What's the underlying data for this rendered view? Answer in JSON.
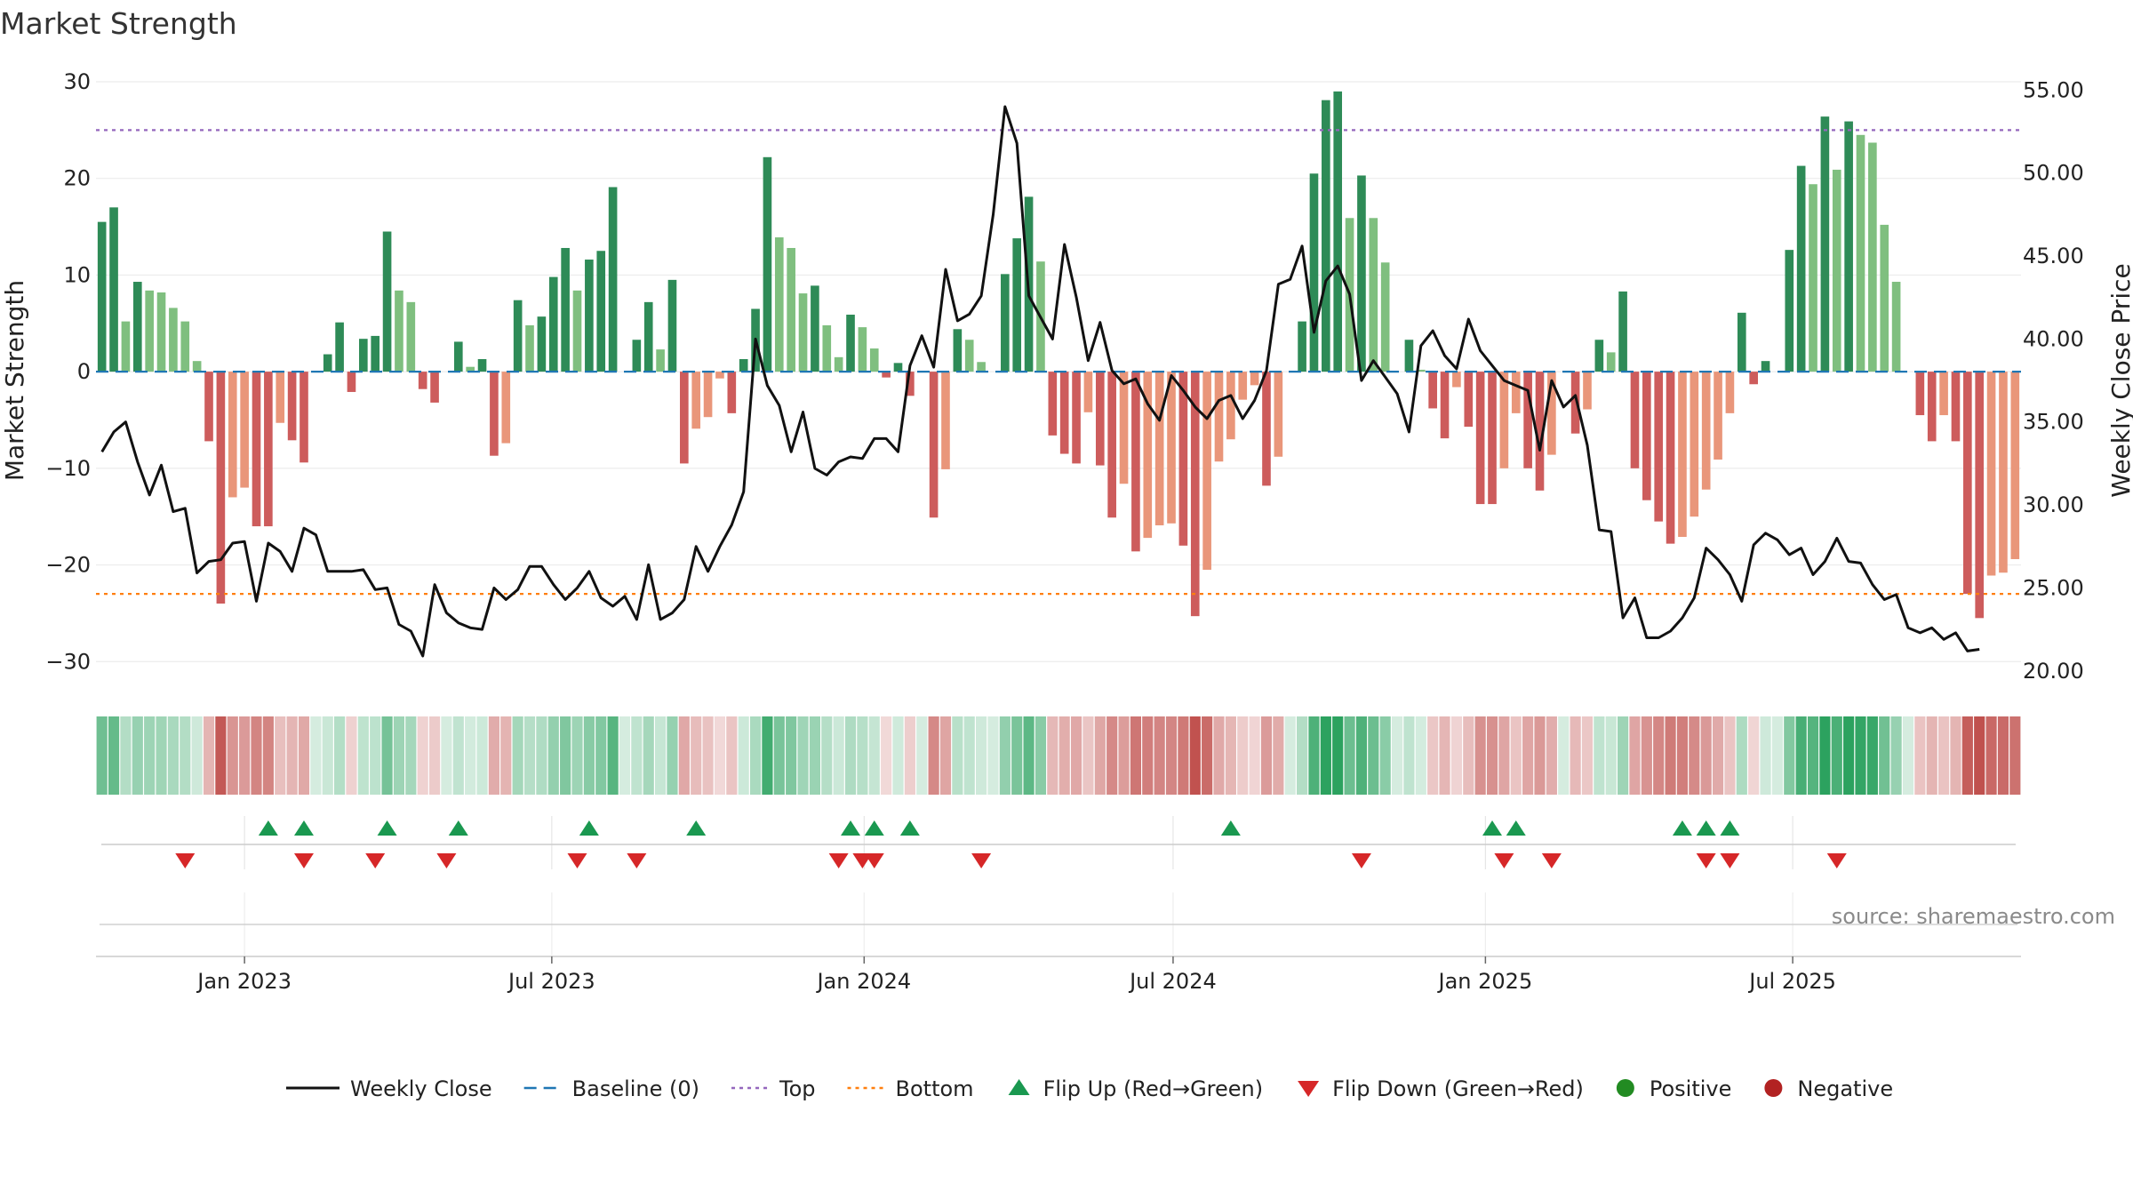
{
  "title": "Market Strength",
  "source_label": "source: sharemaestro.com",
  "colors": {
    "strong_green": "#2e8b57",
    "light_green": "#7fbf7f",
    "strong_red": "#cd5c5c",
    "light_red": "#e9967a",
    "close_line": "#111111",
    "baseline": "#1f77b4",
    "top": "#9467bd",
    "bottom": "#ff7f0e",
    "flip_up": "#1a9850",
    "flip_down": "#d62728",
    "positive": "#228b22",
    "negative": "#b22222"
  },
  "chart_data": {
    "type": "bar",
    "title": "Market Strength",
    "ylabel": "Market Strength",
    "y2label": "Weekly Close Price",
    "ylim": [
      -32,
      30
    ],
    "y2lim": [
      19.4,
      55.5
    ],
    "yticks": [
      "30",
      "20",
      "10",
      "0",
      "−10",
      "−20",
      "−30"
    ],
    "y2ticks": [
      "55.00",
      "50.00",
      "45.00",
      "40.00",
      "35.00",
      "30.00",
      "25.00",
      "20.00"
    ],
    "xticks": [
      "Jan 2023",
      "Jul 2023",
      "Jan 2024",
      "Jul 2024",
      "Jan 2025",
      "Jul 2025"
    ],
    "x_start": "2022-10-09",
    "week_step": 7,
    "top_line": 25,
    "bottom_line": -23,
    "baseline": 0,
    "strength": [
      15.5,
      17,
      5.2,
      9.3,
      8.4,
      8.2,
      6.6,
      5.2,
      1.1,
      -7.2,
      -24,
      -13,
      -12,
      -16,
      -16,
      -5.3,
      -7.1,
      -9.4,
      0,
      1.8,
      5.1,
      -2.1,
      3.4,
      3.7,
      14.5,
      8.4,
      7.2,
      -1.8,
      -3.2,
      0,
      3.1,
      0.5,
      1.3,
      -8.7,
      -7.4,
      7.4,
      4.8,
      5.7,
      9.8,
      12.8,
      8.4,
      11.6,
      12.5,
      19.1,
      0,
      3.3,
      7.2,
      2.3,
      9.5,
      -9.5,
      -5.9,
      -4.7,
      -0.7,
      -4.3,
      1.3,
      6.5,
      22.2,
      13.9,
      12.8,
      8.1,
      8.9,
      4.8,
      1.5,
      5.9,
      4.6,
      2.4,
      -0.6,
      0.9,
      -2.5,
      0,
      -15.1,
      -10.1,
      4.4,
      3.3,
      1,
      0,
      10.1,
      13.8,
      18.1,
      11.4,
      -6.6,
      -8.5,
      -9.5,
      -4.2,
      -9.7,
      -15.1,
      -11.6,
      -18.6,
      -17.2,
      -15.9,
      -15.7,
      -18,
      -25.3,
      -20.5,
      -9.3,
      -7,
      -2.9,
      -1.4,
      -11.8,
      -8.8,
      0,
      5.2,
      20.5,
      28.1,
      29,
      15.9,
      20.3,
      15.9,
      11.3,
      0,
      3.3,
      0.2,
      -3.8,
      -6.9,
      -1.6,
      -5.7,
      -13.7,
      -13.7,
      -10,
      -4.3,
      -10,
      -12.3,
      -8.6,
      0,
      -6.4,
      -3.9,
      3.3,
      2,
      8.3,
      -10,
      -13.3,
      -15.5,
      -17.8,
      -17.1,
      -15,
      -12.2,
      -9.1,
      -4.3,
      6.1,
      -1.3,
      1.1,
      0,
      12.6,
      21.3,
      19.4,
      26.4,
      20.9,
      25.9,
      24.5,
      23.7,
      15.2,
      9.3,
      0,
      -4.5,
      -7.2,
      -4.5,
      -7.2,
      -23,
      -25.5,
      -21.1,
      -20.8,
      -19.4
    ],
    "close": [
      33.2,
      34.4,
      35,
      32.6,
      30.6,
      32.4,
      29.6,
      29.8,
      25.9,
      26.6,
      26.7,
      27.7,
      27.8,
      24.2,
      27.7,
      27.2,
      26,
      28.6,
      28.2,
      26,
      26,
      26,
      26.1,
      24.9,
      25,
      22.8,
      22.4,
      20.9,
      25.2,
      23.5,
      22.9,
      22.6,
      22.5,
      25,
      24.3,
      24.9,
      26.3,
      26.3,
      25.2,
      24.3,
      25,
      26,
      24.4,
      23.9,
      24.5,
      23.1,
      26.4,
      23.1,
      23.5,
      24.3,
      27.5,
      26,
      27.5,
      28.8,
      30.8,
      40,
      37.2,
      36,
      33.2,
      35.6,
      32.2,
      31.8,
      32.6,
      32.9,
      32.8,
      34,
      34,
      33.2,
      38.4,
      40.2,
      38.3,
      44.2,
      41.1,
      41.5,
      42.6,
      47.5,
      54,
      51.8,
      42.6,
      41.3,
      40,
      45.7,
      42.5,
      38.7,
      41,
      38.1,
      37.3,
      37.6,
      36.1,
      35.1,
      37.8,
      36.9,
      35.9,
      35.2,
      36.3,
      36.6,
      35.2,
      36.3,
      38.1,
      43.3,
      43.6,
      45.6,
      40.4,
      43.5,
      44.4,
      42.7,
      37.5,
      38.7,
      37.7,
      36.7,
      34.4,
      39.6,
      40.5,
      39,
      38.2,
      41.2,
      39.3,
      38.4,
      37.5,
      37.2,
      36.9,
      33.3,
      37.5,
      35.9,
      36.6,
      33.6,
      28.5,
      28.4,
      23.2,
      24.4,
      22,
      22,
      22.4,
      23.2,
      24.4,
      27.4,
      26.7,
      25.8,
      24.2,
      27.6,
      28.3,
      27.9,
      27,
      27.4,
      25.8,
      26.6,
      28,
      26.6,
      26.5,
      25.2,
      24.3,
      24.6,
      22.6,
      22.3,
      22.6,
      21.9,
      22.3,
      21.2,
      21.3
    ],
    "flip_up": [
      "2023-01-15",
      "2023-02-05",
      "2023-03-26",
      "2023-05-07",
      "2023-07-23",
      "2023-09-24",
      "2023-12-24",
      "2024-01-07",
      "2024-01-28",
      "2024-08-04",
      "2025-01-05",
      "2025-01-19",
      "2025-04-27",
      "2025-05-11",
      "2025-05-25"
    ],
    "flip_down": [
      "2022-11-27",
      "2023-02-05",
      "2023-03-19",
      "2023-04-30",
      "2023-07-16",
      "2023-08-20",
      "2023-12-17",
      "2023-12-31",
      "2024-01-07",
      "2024-03-10",
      "2024-10-20",
      "2025-01-12",
      "2025-02-09",
      "2025-05-11",
      "2025-05-25",
      "2025-07-27"
    ],
    "legend": [
      {
        "label": "Weekly Close",
        "kind": "line"
      },
      {
        "label": "Baseline (0)",
        "kind": "dash"
      },
      {
        "label": "Top",
        "kind": "dot-purple"
      },
      {
        "label": "Bottom",
        "kind": "dot-orange"
      },
      {
        "label": "Flip Up (Red→Green)",
        "kind": "tri-up"
      },
      {
        "label": "Flip Down (Green→Red)",
        "kind": "tri-down"
      },
      {
        "label": "Positive",
        "kind": "circle-green"
      },
      {
        "label": "Negative",
        "kind": "circle-red"
      }
    ],
    "legend_position": "bottom-center",
    "grid": true
  }
}
